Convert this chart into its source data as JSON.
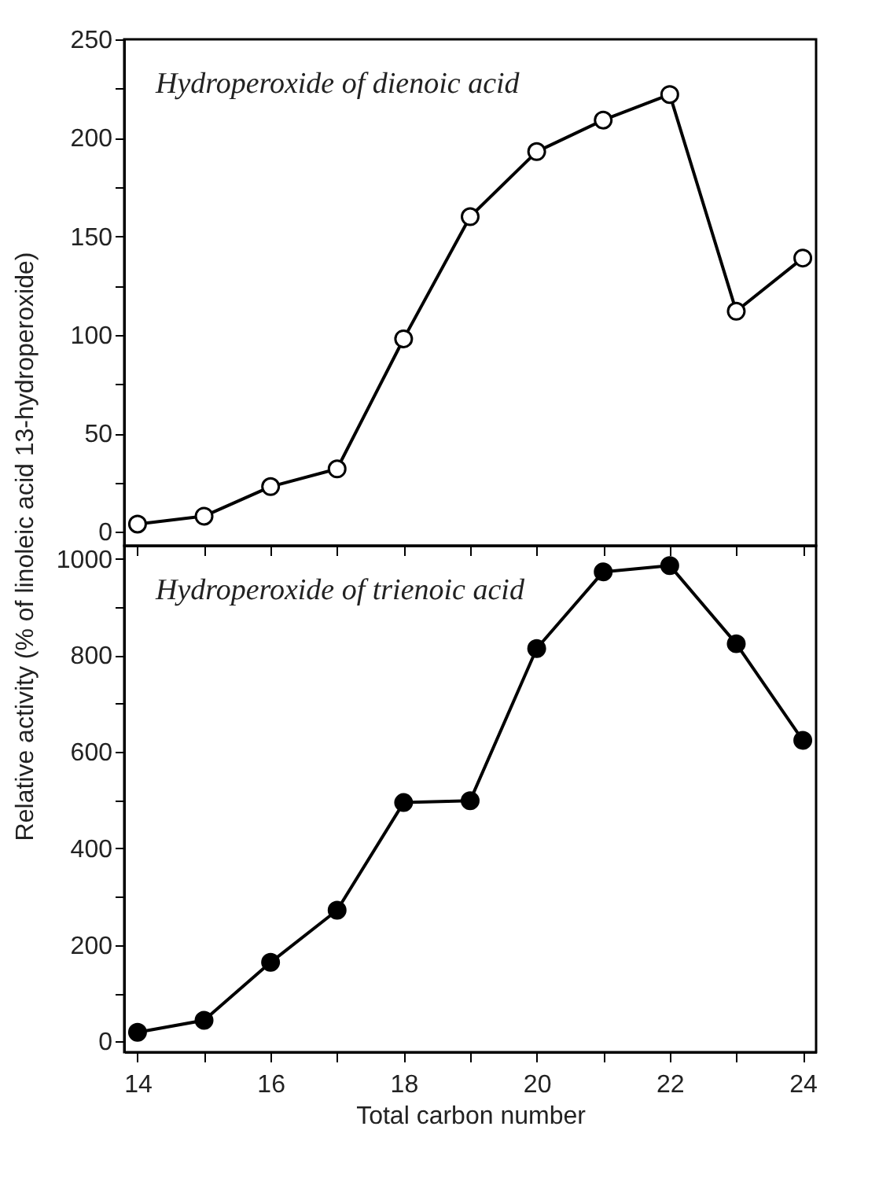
{
  "chart_data": [
    {
      "type": "line",
      "x": [
        14,
        15,
        16,
        17,
        18,
        19,
        20,
        21,
        22,
        23,
        24
      ],
      "xlim": [
        13.8,
        24.2
      ],
      "xticks": [
        14,
        {
          "value": 15,
          "label": null
        },
        16,
        {
          "value": 17,
          "label": null
        },
        18,
        {
          "value": 19,
          "label": null
        },
        20,
        {
          "value": 21,
          "label": null
        },
        22,
        {
          "value": 23,
          "label": null
        },
        24
      ],
      "ylim": [
        -7,
        250
      ],
      "yticks": [
        0,
        {
          "value": 25,
          "label": null
        },
        50,
        {
          "value": 75,
          "label": null
        },
        100,
        {
          "value": 125,
          "label": null
        },
        150,
        {
          "value": 175,
          "label": null
        },
        200,
        {
          "value": 225,
          "label": null
        },
        250
      ],
      "tick_labels": "y",
      "marker": "circle",
      "line_style": "solid",
      "grid": false,
      "annotations": [
        "Hydroperoxide of dienoic acid"
      ],
      "series": [
        {
          "color": "#000000",
          "values": [
            4,
            8,
            23,
            32,
            98,
            160,
            193,
            209,
            222,
            112,
            139
          ]
        }
      ]
    },
    {
      "type": "line",
      "x": [
        14,
        15,
        16,
        17,
        18,
        19,
        20,
        21,
        22,
        23,
        24
      ],
      "xlim": [
        13.8,
        24.2
      ],
      "xticks": [
        14,
        {
          "value": 15,
          "label": null
        },
        16,
        {
          "value": 17,
          "label": null
        },
        18,
        {
          "value": 19,
          "label": null
        },
        20,
        {
          "value": 21,
          "label": null
        },
        22,
        {
          "value": 23,
          "label": null
        },
        24
      ],
      "ylim": [
        -22,
        1027
      ],
      "yticks": [
        0,
        {
          "value": 100,
          "label": null
        },
        200,
        {
          "value": 300,
          "label": null
        },
        400,
        {
          "value": 500,
          "label": null
        },
        600,
        {
          "value": 700,
          "label": null
        },
        800,
        {
          "value": 900,
          "label": null
        },
        1000
      ],
      "xlabel": "Total carbon number",
      "ylabel": "Relative activity (% of linoleic acid 13-hydroperoxide)",
      "marker": "circle",
      "line_style": "solid",
      "grid": false,
      "annotations": [
        "Hydroperoxide of trienoic acid"
      ],
      "series": [
        {
          "color": "#000000",
          "values": [
            19,
            44,
            164,
            272,
            495,
            499,
            814,
            973,
            986,
            824,
            624
          ]
        }
      ]
    }
  ]
}
